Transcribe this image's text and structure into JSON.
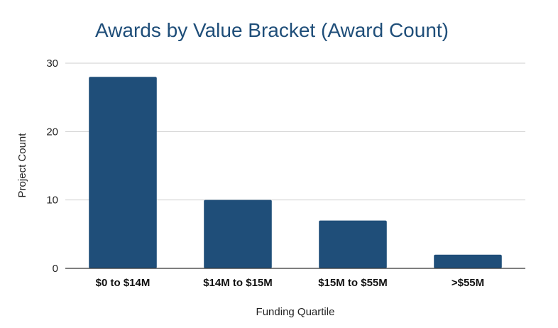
{
  "chart_data": {
    "type": "bar",
    "title": "Awards by Value Bracket (Award Count)",
    "xlabel": "Funding Quartile",
    "ylabel": "Project Count",
    "categories": [
      "$0 to $14M",
      "$14M to $15M",
      "$15M to $55M",
      ">$55M"
    ],
    "values": [
      28,
      10,
      7,
      2
    ],
    "ylim": [
      0,
      30
    ],
    "yticks": [
      "0",
      "10",
      "20",
      "30"
    ],
    "grid": true,
    "legend": "none",
    "colors": {
      "bar": "#1f4e79",
      "title": "#1f4e79"
    }
  }
}
